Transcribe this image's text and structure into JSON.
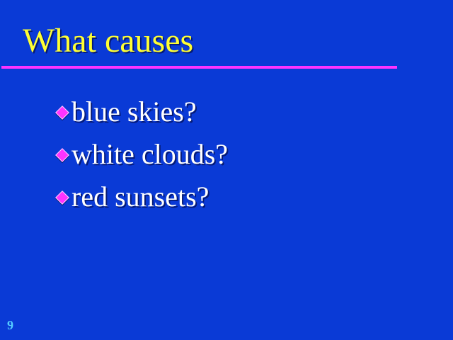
{
  "slide": {
    "title": "What causes",
    "bullets": [
      {
        "text": "blue skies?"
      },
      {
        "text": "white clouds?"
      },
      {
        "text": "red sunsets?"
      }
    ],
    "page_number": "9"
  },
  "style": {
    "background": "#0a3ad6",
    "title_color": "#ffff33",
    "rule_color": "#ff33ff",
    "bullet_color": "#ff33ff",
    "text_color": "#ffffff",
    "page_number_color": "#55ccff"
  },
  "icons": {
    "bullet": "diamond-bullet-icon"
  }
}
